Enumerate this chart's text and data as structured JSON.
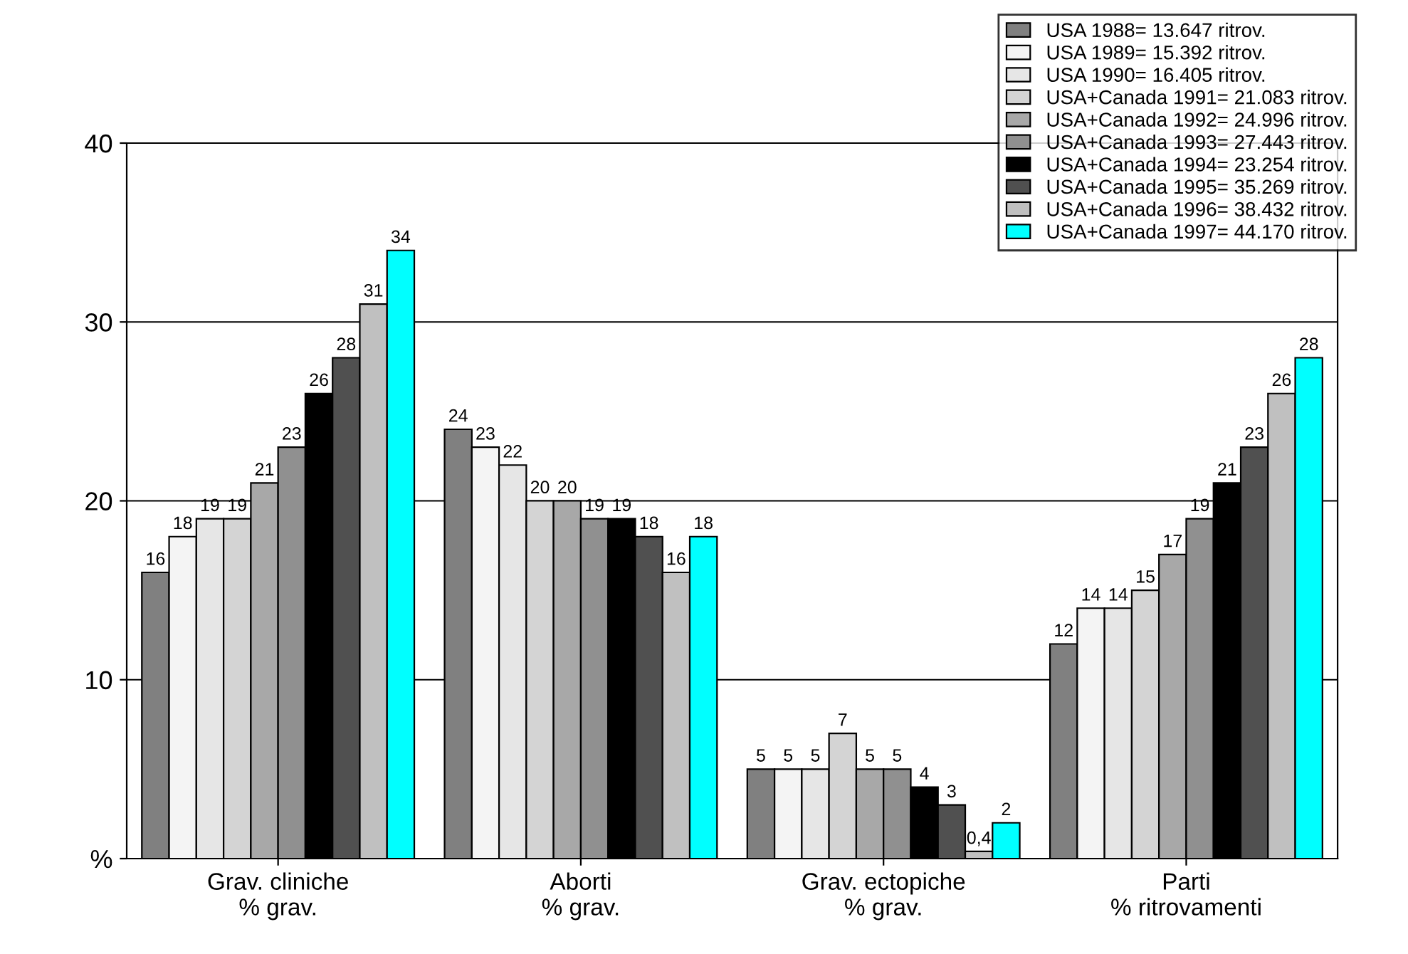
{
  "chart_data": {
    "type": "bar",
    "categories": [
      "Grav. cliniche\n% grav.",
      "Aborti\n% grav.",
      "Grav. ectopiche\n% grav.",
      "Parti\n% ritrovamenti"
    ],
    "series": [
      {
        "name": "USA 1988= 13.647 ritrov.",
        "color": "#808080",
        "values": [
          16,
          24,
          5,
          12
        ],
        "value_labels": [
          "16",
          "24",
          "5",
          "12"
        ]
      },
      {
        "name": "USA 1989= 15.392 ritrov.",
        "color": "#f4f4f4",
        "values": [
          18,
          23,
          5,
          14
        ],
        "value_labels": [
          "18",
          "23",
          "5",
          "14"
        ]
      },
      {
        "name": "USA 1990= 16.405 ritrov.",
        "color": "#e6e6e6",
        "values": [
          19,
          22,
          5,
          14
        ],
        "value_labels": [
          "19",
          "22",
          "5",
          "14"
        ]
      },
      {
        "name": "USA+Canada 1991= 21.083 ritrov.",
        "color": "#d4d4d4",
        "values": [
          19,
          20,
          7,
          15
        ],
        "value_labels": [
          "19",
          "20",
          "7",
          "15"
        ]
      },
      {
        "name": "USA+Canada 1992= 24.996 ritrov.",
        "color": "#a8a8a8",
        "values": [
          21,
          20,
          5,
          17
        ],
        "value_labels": [
          "21",
          "20",
          "5",
          "17"
        ]
      },
      {
        "name": "USA+Canada 1993= 27.443 ritrov.",
        "color": "#909090",
        "values": [
          23,
          19,
          5,
          19
        ],
        "value_labels": [
          "23",
          "19",
          "5",
          "19"
        ]
      },
      {
        "name": "USA+Canada 1994= 23.254 ritrov.",
        "color": "#000000",
        "values": [
          26,
          19,
          4,
          21
        ],
        "value_labels": [
          "26",
          "19",
          "4",
          "21"
        ]
      },
      {
        "name": "USA+Canada 1995= 35.269 ritrov.",
        "color": "#505050",
        "values": [
          28,
          18,
          3,
          23
        ],
        "value_labels": [
          "28",
          "18",
          "3",
          "23"
        ]
      },
      {
        "name": "USA+Canada 1996= 38.432 ritrov.",
        "color": "#c0c0c0",
        "values": [
          31,
          16,
          0.4,
          26
        ],
        "value_labels": [
          "31",
          "16",
          "0,4",
          "26"
        ]
      },
      {
        "name": "USA+Canada 1997= 44.170 ritrov.",
        "color": "#00ffff",
        "values": [
          34,
          18,
          2,
          28
        ],
        "value_labels": [
          "34",
          "18",
          "2",
          "28"
        ]
      }
    ],
    "ylim": [
      0,
      40
    ],
    "yticks": [
      {
        "value": 0,
        "label": "%"
      },
      10,
      20,
      30,
      40
    ],
    "grid": "y",
    "legend": "top right"
  }
}
